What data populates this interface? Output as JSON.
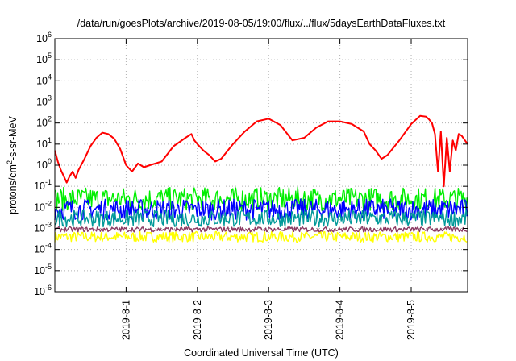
{
  "chart_data": {
    "type": "line",
    "title": "/data/run/goesPlots/archive/2019-08-05/19:00/flux/../flux/5daysEarthDataFluxes.txt",
    "xlabel": "Coordinated Universal Time (UTC)",
    "ylabel_parts": {
      "base": "protons/cm",
      "sup": "2",
      "rest": "-s-sr-MeV"
    },
    "yscale": "log",
    "ylim": [
      1e-06,
      1000000.0
    ],
    "yticks": [
      {
        "value": 1e-06,
        "base": "10",
        "exp": "-6"
      },
      {
        "value": 1e-05,
        "base": "10",
        "exp": "-5"
      },
      {
        "value": 0.0001,
        "base": "10",
        "exp": "-4"
      },
      {
        "value": 0.001,
        "base": "10",
        "exp": "-3"
      },
      {
        "value": 0.01,
        "base": "10",
        "exp": "-2"
      },
      {
        "value": 0.1,
        "base": "10",
        "exp": "-1"
      },
      {
        "value": 1,
        "base": "10",
        "exp": "0"
      },
      {
        "value": 10,
        "base": "10",
        "exp": "1"
      },
      {
        "value": 100,
        "base": "10",
        "exp": "2"
      },
      {
        "value": 1000,
        "base": "10",
        "exp": "3"
      },
      {
        "value": 10000,
        "base": "10",
        "exp": "4"
      },
      {
        "value": 100000,
        "base": "10",
        "exp": "5"
      },
      {
        "value": 1000000,
        "base": "10",
        "exp": "6"
      }
    ],
    "xlim": [
      "2019-07-31T00:00",
      "2019-08-05T19:00"
    ],
    "xticks": [
      "2019-8-1",
      "2019-8-2",
      "2019-8-3",
      "2019-8-4",
      "2019-8-5"
    ],
    "xtick_values": [
      "2019-08-01T00:00",
      "2019-08-02T00:00",
      "2019-08-03T00:00",
      "2019-08-04T00:00",
      "2019-08-05T00:00"
    ],
    "grid": true,
    "legend": "none",
    "series": [
      {
        "color": "#ff0000",
        "x": [
          "2019-07-31T00:00",
          "2019-07-31T01:00",
          "2019-07-31T02:00",
          "2019-07-31T03:00",
          "2019-07-31T04:00",
          "2019-07-31T05:00",
          "2019-07-31T06:00",
          "2019-07-31T07:00",
          "2019-07-31T08:00",
          "2019-07-31T10:00",
          "2019-07-31T12:00",
          "2019-07-31T14:00",
          "2019-07-31T16:00",
          "2019-07-31T18:00",
          "2019-07-31T20:00",
          "2019-07-31T22:00",
          "2019-08-01T00:00",
          "2019-08-01T02:00",
          "2019-08-01T04:00",
          "2019-08-01T06:00",
          "2019-08-01T08:00",
          "2019-08-01T12:00",
          "2019-08-01T16:00",
          "2019-08-01T20:00",
          "2019-08-01T22:00",
          "2019-08-01T23:00",
          "2019-08-02T00:00",
          "2019-08-02T02:00",
          "2019-08-02T04:00",
          "2019-08-02T06:00",
          "2019-08-02T08:00",
          "2019-08-02T12:00",
          "2019-08-02T16:00",
          "2019-08-02T20:00",
          "2019-08-03T00:00",
          "2019-08-03T04:00",
          "2019-08-03T08:00",
          "2019-08-03T12:00",
          "2019-08-03T16:00",
          "2019-08-03T20:00",
          "2019-08-04T00:00",
          "2019-08-04T04:00",
          "2019-08-04T08:00",
          "2019-08-04T10:00",
          "2019-08-04T12:00",
          "2019-08-04T14:00",
          "2019-08-04T16:00",
          "2019-08-04T20:00",
          "2019-08-05T00:00",
          "2019-08-05T03:00",
          "2019-08-05T05:00",
          "2019-08-05T06:00",
          "2019-08-05T07:00",
          "2019-08-05T08:00",
          "2019-08-05T09:00",
          "2019-08-05T10:00",
          "2019-08-05T11:00",
          "2019-08-05T12:00",
          "2019-08-05T13:00",
          "2019-08-05T14:00",
          "2019-08-05T15:00",
          "2019-08-05T16:00",
          "2019-08-05T17:00",
          "2019-08-05T19:00"
        ],
        "y": [
          5,
          1.5,
          0.6,
          0.3,
          0.15,
          0.3,
          0.5,
          0.25,
          0.6,
          2,
          8,
          20,
          35,
          30,
          18,
          6,
          1,
          0.5,
          1.2,
          0.8,
          1,
          1.5,
          8,
          20,
          30,
          15,
          10,
          5,
          3,
          1.5,
          2,
          10,
          40,
          120,
          160,
          80,
          15,
          20,
          60,
          120,
          120,
          90,
          40,
          10,
          5,
          2,
          3,
          15,
          90,
          220,
          200,
          150,
          100,
          30,
          0.5,
          40,
          0.1,
          20,
          0.5,
          15,
          5,
          30,
          25,
          10
        ]
      },
      {
        "color": "#00ee00",
        "x": [
          "2019-07-31T00:00",
          "2019-08-05T19:00"
        ],
        "y": [
          0.025,
          0.025
        ]
      },
      {
        "color": "#0000ff",
        "x": [
          "2019-07-31T00:00",
          "2019-08-05T19:00"
        ],
        "y": [
          0.008,
          0.008
        ]
      },
      {
        "color": "#009999",
        "x": [
          "2019-07-31T00:00",
          "2019-08-05T19:00"
        ],
        "y": [
          0.003,
          0.003
        ]
      },
      {
        "color": "#8b3a62",
        "x": [
          "2019-07-31T00:00",
          "2019-08-05T19:00"
        ],
        "y": [
          0.0009,
          0.0009
        ]
      },
      {
        "color": "#ffff00",
        "x": [
          "2019-07-31T00:00",
          "2019-08-05T19:00"
        ],
        "y": [
          0.0004,
          0.0004
        ]
      }
    ]
  }
}
